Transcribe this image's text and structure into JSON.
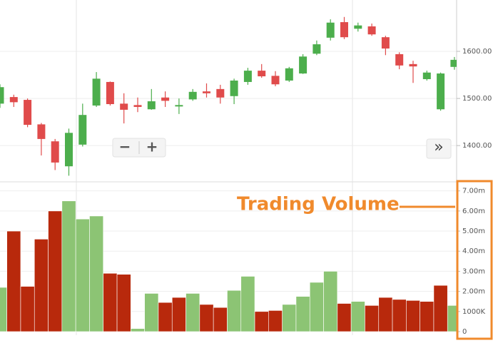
{
  "chart_data": [
    {
      "type": "candlestick",
      "categories": [
        null,
        null,
        null,
        null,
        null,
        null,
        null,
        null,
        null,
        null,
        null,
        null,
        null,
        null,
        null,
        null,
        null,
        null,
        null,
        null,
        null,
        null,
        null,
        null,
        null,
        null,
        null,
        null,
        null,
        null,
        null,
        null,
        null,
        null
      ],
      "open": [
        1489,
        1503,
        1497,
        1445,
        1409,
        1356,
        1402,
        1485,
        1535,
        1489,
        1486,
        1477,
        1502,
        1483,
        1498,
        1515,
        1520,
        1505,
        1535,
        1559,
        1548,
        1538,
        1553,
        1595,
        1629,
        1662,
        1648,
        1653,
        1630,
        1594,
        1573,
        1541,
        1477,
        1567
      ],
      "high": [
        1530,
        1508,
        1500,
        1448,
        1414,
        1436,
        1489,
        1556,
        1536,
        1511,
        1502,
        1520,
        1515,
        1500,
        1520,
        1532,
        1529,
        1542,
        1565,
        1573,
        1558,
        1567,
        1594,
        1623,
        1668,
        1673,
        1661,
        1659,
        1633,
        1598,
        1580,
        1559,
        1555,
        1588
      ],
      "low": [
        1480,
        1482,
        1439,
        1379,
        1348,
        1336,
        1398,
        1482,
        1485,
        1447,
        1471,
        1476,
        1482,
        1467,
        1495,
        1502,
        1489,
        1488,
        1529,
        1544,
        1526,
        1535,
        1552,
        1592,
        1623,
        1626,
        1642,
        1633,
        1592,
        1562,
        1533,
        1538,
        1474,
        1561
      ],
      "close": [
        1524,
        1492,
        1444,
        1414,
        1364,
        1427,
        1465,
        1542,
        1488,
        1476,
        1482,
        1494,
        1495,
        1486,
        1514,
        1511,
        1502,
        1538,
        1559,
        1547,
        1530,
        1564,
        1589,
        1615,
        1661,
        1630,
        1655,
        1636,
        1606,
        1570,
        1568,
        1555,
        1553,
        1582
      ],
      "up_color": "#4cae4c",
      "down_color": "#e04b4b",
      "ylim": [
        1323,
        1709
      ],
      "yticks": [
        {
          "value": 1400,
          "label": "1400.00"
        },
        {
          "value": 1500,
          "label": "1500.00"
        },
        {
          "value": 1600,
          "label": "1600.00"
        }
      ],
      "grid": true
    },
    {
      "type": "bar",
      "annotation": "Trading Volume",
      "categories": [
        null,
        null,
        null,
        null,
        null,
        null,
        null,
        null,
        null,
        null,
        null,
        null,
        null,
        null,
        null,
        null,
        null,
        null,
        null,
        null,
        null,
        null,
        null,
        null,
        null,
        null,
        null,
        null,
        null,
        null,
        null,
        null,
        null,
        null
      ],
      "values": [
        2.2,
        5.0,
        2.25,
        4.6,
        6.0,
        6.5,
        5.6,
        5.75,
        2.9,
        2.85,
        0.15,
        1.9,
        1.45,
        1.7,
        1.9,
        1.35,
        1.2,
        2.05,
        2.75,
        1.0,
        1.05,
        1.35,
        1.75,
        2.45,
        3.0,
        1.4,
        1.5,
        1.3,
        1.7,
        1.6,
        1.55,
        1.5,
        2.3,
        1.3
      ],
      "colors": [
        "#8cc474",
        "#b8290c",
        "#b8290c",
        "#b8290c",
        "#b8290c",
        "#8cc474",
        "#8cc474",
        "#8cc474",
        "#b8290c",
        "#b8290c",
        "#8cc474",
        "#8cc474",
        "#b8290c",
        "#b8290c",
        "#8cc474",
        "#b8290c",
        "#b8290c",
        "#8cc474",
        "#8cc474",
        "#b8290c",
        "#b8290c",
        "#8cc474",
        "#8cc474",
        "#8cc474",
        "#8cc474",
        "#b8290c",
        "#8cc474",
        "#b8290c",
        "#b8290c",
        "#b8290c",
        "#b8290c",
        "#b8290c",
        "#b8290c",
        "#8cc474"
      ],
      "ylim": [
        0,
        7.45
      ],
      "yticks": [
        0,
        {
          "value": 1,
          "label": "1000K"
        },
        {
          "value": 2,
          "label": "2.00m"
        },
        {
          "value": 3,
          "label": "3.00m"
        },
        {
          "value": 4,
          "label": "4.00m"
        },
        {
          "value": 5,
          "label": "5.00m"
        },
        {
          "value": 6,
          "label": "6.00m"
        },
        {
          "value": 7,
          "label": "7.00m"
        }
      ],
      "grid": true
    }
  ],
  "buttons": {
    "zoom_out": "−",
    "zoom_in": "+",
    "scroll": "»"
  }
}
